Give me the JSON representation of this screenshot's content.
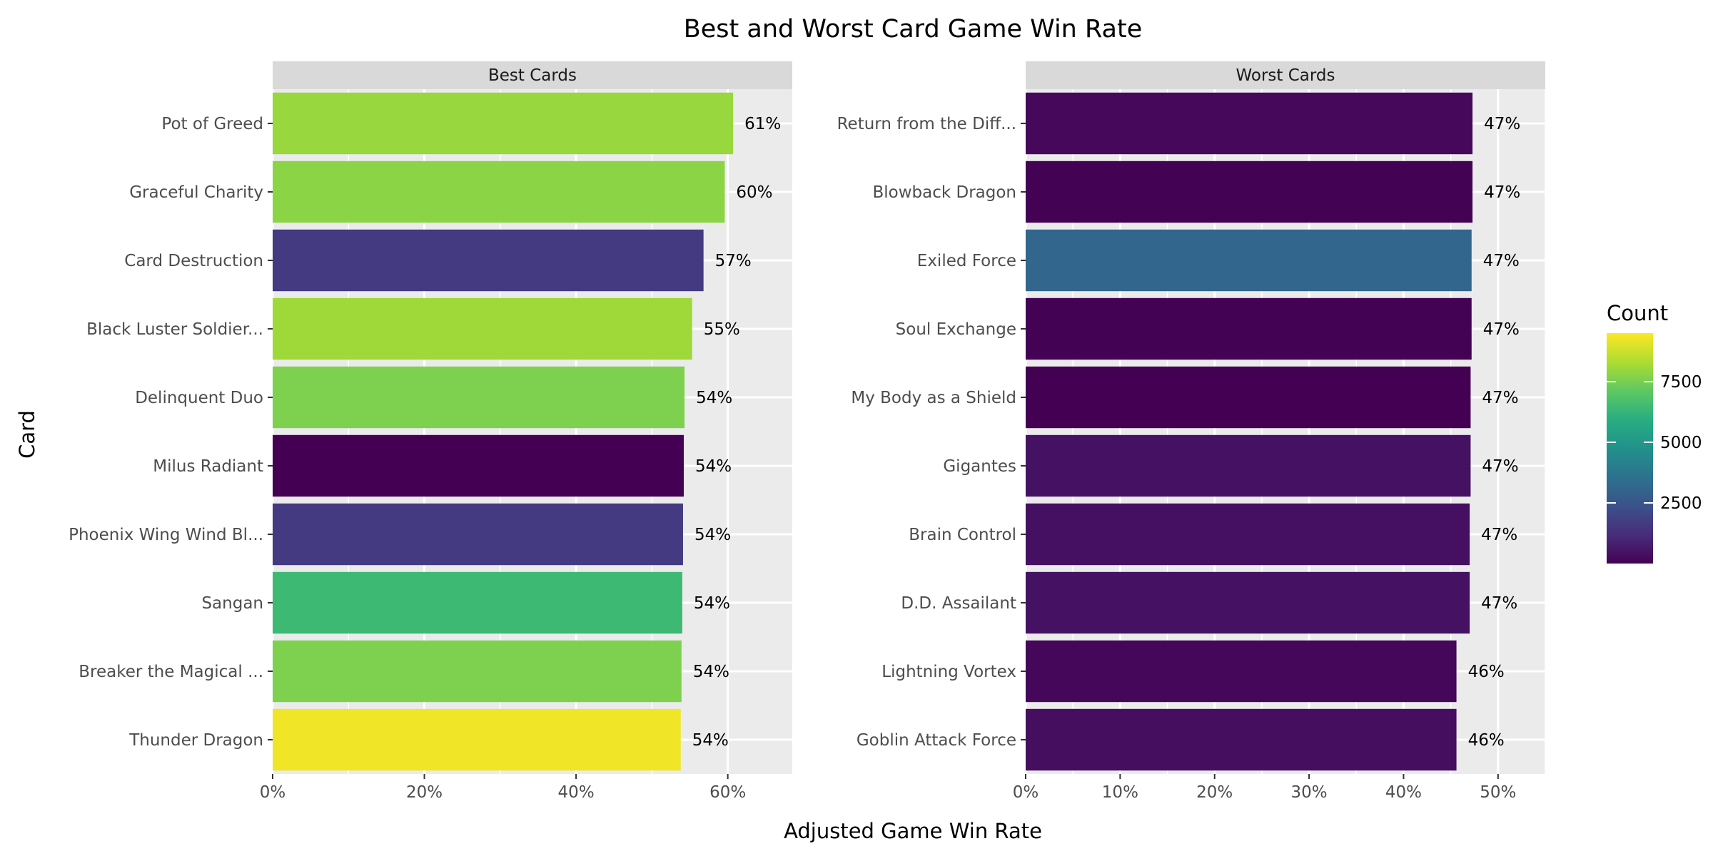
{
  "chart_data": {
    "type": "bar",
    "orientation": "horizontal",
    "title": "Best and Worst Card Game Win Rate",
    "xlabel": "Adjusted Game Win Rate",
    "ylabel": "Card",
    "legend": {
      "title": "Count",
      "placement": "right",
      "colormap": "viridis",
      "range": [
        0,
        9500
      ],
      "ticks": [
        2500,
        5000,
        7500
      ],
      "tick_labels": [
        "2500",
        "5000",
        "7500"
      ]
    },
    "grid": true,
    "panels": [
      {
        "title": "Best Cards",
        "xlim": [
          0,
          0.685
        ],
        "x_ticks": [
          0,
          0.2,
          0.4,
          0.6
        ],
        "x_tick_labels": [
          "0%",
          "20%",
          "40%",
          "60%"
        ],
        "bars": [
          {
            "card": "Pot of Greed",
            "value": 0.607,
            "label": "61%",
            "count": 8000
          },
          {
            "card": "Graceful Charity",
            "value": 0.596,
            "label": "60%",
            "count": 7800
          },
          {
            "card": "Card Destruction",
            "value": 0.568,
            "label": "57%",
            "count": 1600
          },
          {
            "card": "Black Luster Soldier...",
            "value": 0.553,
            "label": "55%",
            "count": 8100
          },
          {
            "card": "Delinquent Duo",
            "value": 0.543,
            "label": "54%",
            "count": 7600
          },
          {
            "card": "Milus Radiant",
            "value": 0.542,
            "label": "54%",
            "count": 10
          },
          {
            "card": "Phoenix Wing Wind Bl...",
            "value": 0.541,
            "label": "54%",
            "count": 1600
          },
          {
            "card": "Sangan",
            "value": 0.54,
            "label": "54%",
            "count": 6400
          },
          {
            "card": "Breaker the Magical ...",
            "value": 0.539,
            "label": "54%",
            "count": 7600
          },
          {
            "card": "Thunder Dragon",
            "value": 0.538,
            "label": "54%",
            "count": 9300
          }
        ]
      },
      {
        "title": "Worst Cards",
        "xlim": [
          0,
          0.55
        ],
        "x_ticks": [
          0,
          0.1,
          0.2,
          0.3,
          0.4,
          0.5
        ],
        "x_tick_labels": [
          "0%",
          "10%",
          "20%",
          "30%",
          "40%",
          "50%"
        ],
        "bars": [
          {
            "card": "Return from the Diff...",
            "value": 0.473,
            "label": "47%",
            "count": 200
          },
          {
            "card": "Blowback Dragon",
            "value": 0.473,
            "label": "47%",
            "count": 20
          },
          {
            "card": "Exiled Force",
            "value": 0.472,
            "label": "47%",
            "count": 3100
          },
          {
            "card": "Soul Exchange",
            "value": 0.472,
            "label": "47%",
            "count": 15
          },
          {
            "card": "My Body as a Shield",
            "value": 0.471,
            "label": "47%",
            "count": 10
          },
          {
            "card": "Gigantes",
            "value": 0.471,
            "label": "47%",
            "count": 450
          },
          {
            "card": "Brain Control",
            "value": 0.47,
            "label": "47%",
            "count": 400
          },
          {
            "card": "D.D. Assailant",
            "value": 0.47,
            "label": "47%",
            "count": 420
          },
          {
            "card": "Lightning Vortex",
            "value": 0.456,
            "label": "46%",
            "count": 150
          },
          {
            "card": "Goblin Attack Force",
            "value": 0.456,
            "label": "46%",
            "count": 350
          }
        ]
      }
    ]
  }
}
